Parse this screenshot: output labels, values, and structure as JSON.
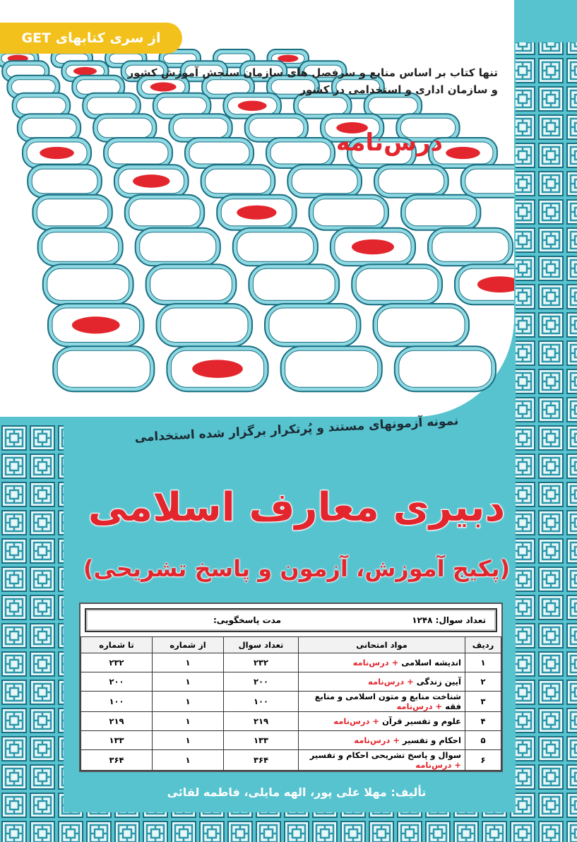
{
  "series_badge": "از سری کتابهای GET",
  "tagline": [
    "تنها کتاب بر اساس منابع و سرفصل های سازمان سنجش آموزش کشور",
    "و سازمان اداری و استخدامی در کشور"
  ],
  "lesson_label": "درس‌نامه",
  "subtitle": "نمونه آزمونهای مستند و پُرتکرار برگزار شده استخدامی",
  "title": "دبیری معارف اسلامی",
  "package": "(پکیج آموزش، آزمون و پاسخ تشریحی)",
  "table": {
    "question_count": "تعداد سوال: ۱۲۴۸",
    "duration": "مدت پاسخگویی:",
    "headers": [
      "ردیف",
      "مواد امتحانی",
      "تعداد سوال",
      "از شماره",
      "تا شماره"
    ],
    "rows": [
      [
        "۱",
        "اندیشه اسلامی",
        "+ درس‌نامه",
        "۲۳۲",
        "۱",
        "۲۳۲"
      ],
      [
        "۲",
        "آیین زندگی",
        "+ درس‌نامه",
        "۲۰۰",
        "۱",
        "۲۰۰"
      ],
      [
        "۳",
        "شناخت منابع و متون اسلامی و منابع فقه",
        "+ درس‌نامه",
        "۱۰۰",
        "۱",
        "۱۰۰"
      ],
      [
        "۴",
        "علوم و تفسیر قرآن",
        "+ درس‌نامه",
        "۲۱۹",
        "۱",
        "۲۱۹"
      ],
      [
        "۵",
        "احکام و تفسیر",
        "+ درس‌نامه",
        "۱۳۳",
        "۱",
        "۱۳۳"
      ],
      [
        "۶",
        "سوال و پاسخ تشریحی احکام و تفسیر",
        "+ درس‌نامه",
        "۳۶۴",
        "۱",
        "۳۶۴"
      ]
    ]
  },
  "authors": "تألیف: مهلا علی پور، الهه مایلی، فاطمه لقائی"
}
